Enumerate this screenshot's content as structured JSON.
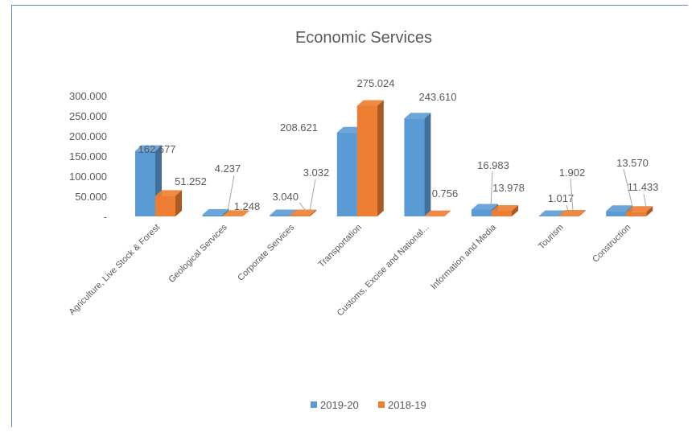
{
  "chart_data": {
    "type": "bar",
    "title": "Economic Services",
    "categories": [
      "Agriculture, Live Stock & Forest",
      "Geological Services",
      "Corporate Services",
      "Transportation",
      "Customs, Excise and National...",
      "Information and Media",
      "Tourism",
      "Construction"
    ],
    "series": [
      {
        "name": "2019-20",
        "values": [
          162.677,
          4.237,
          3.04,
          208.621,
          243.61,
          16.983,
          1.017,
          13.57
        ],
        "labels": [
          "162.677",
          "4.237",
          "3.040",
          "208.621",
          "243.610",
          "16.983",
          "1.017",
          "13.570"
        ]
      },
      {
        "name": "2018-19",
        "values": [
          51.252,
          1.248,
          3.032,
          275.024,
          0.756,
          13.978,
          1.902,
          11.433
        ],
        "labels": [
          "51.252",
          "1.248",
          "3.032",
          "275.024",
          "0.756",
          "13.978",
          "1.902",
          "11.433"
        ]
      }
    ],
    "yticks": [
      "-",
      "50.000",
      "100.000",
      "150.000",
      "200.000",
      "250.000",
      "300.000"
    ],
    "ylim": [
      0,
      300
    ],
    "style": "3d-column",
    "legend_position": "bottom",
    "colors": {
      "2019-20": "#5b9bd5",
      "2018-19": "#ed7d31"
    }
  }
}
